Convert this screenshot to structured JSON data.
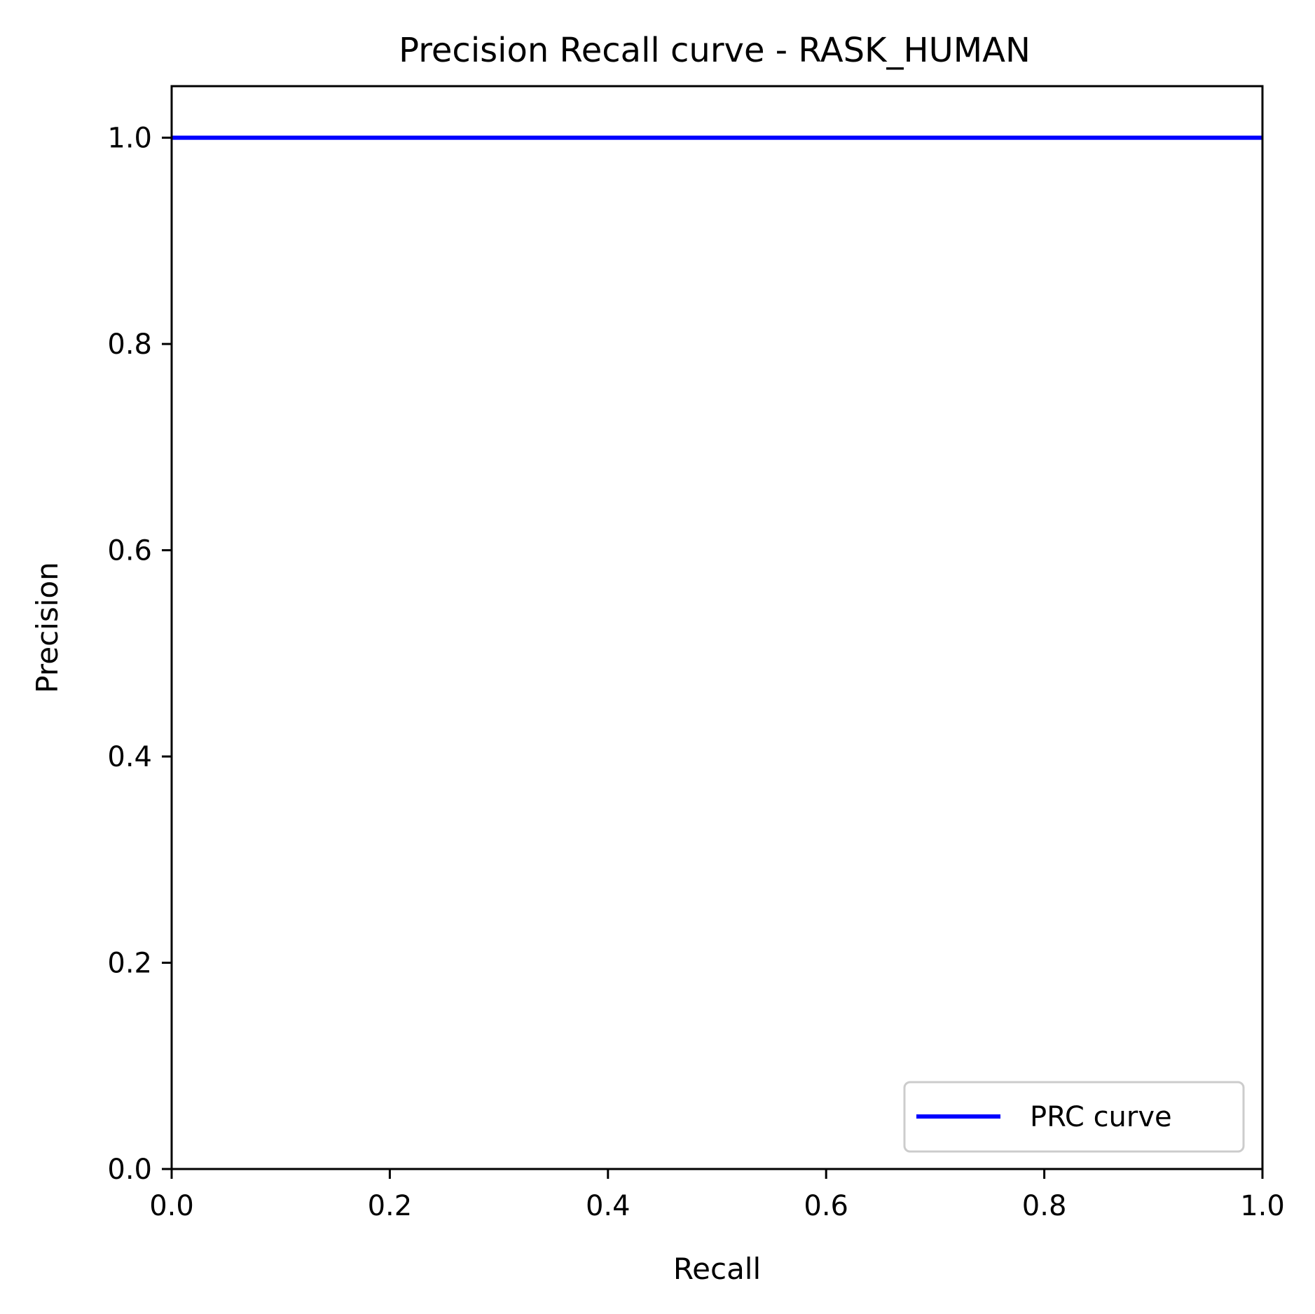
{
  "chart_data": {
    "type": "line",
    "title": "Precision Recall curve - RASK_HUMAN",
    "xlabel": "Recall",
    "ylabel": "Precision",
    "xlim": [
      0.0,
      1.0
    ],
    "ylim": [
      0.0,
      1.05
    ],
    "x_ticks": [
      "0.0",
      "0.2",
      "0.4",
      "0.6",
      "0.8",
      "1.0"
    ],
    "y_ticks": [
      "0.0",
      "0.2",
      "0.4",
      "0.6",
      "0.8",
      "1.0"
    ],
    "grid": false,
    "legend_position": "lower-right",
    "series": [
      {
        "name": "PRC curve",
        "color": "#0000ff",
        "x": [
          0.0,
          1.0
        ],
        "y": [
          1.0,
          1.0
        ]
      }
    ]
  }
}
